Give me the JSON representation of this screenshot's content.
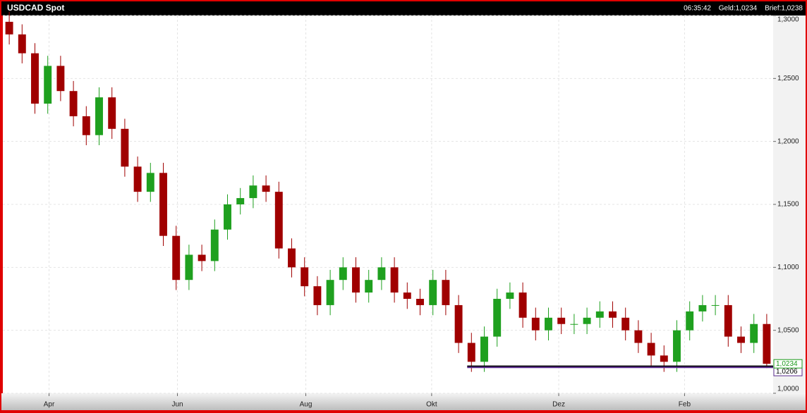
{
  "chart_data": {
    "type": "candlestick",
    "title": "USDCAD Spot",
    "header": {
      "time": "06:35:42",
      "bid": "Geld:1,0234",
      "ask": "Brief:1,0238"
    },
    "categories": [
      null,
      null,
      null,
      null,
      null,
      null,
      null,
      null,
      null,
      null,
      null,
      null,
      null,
      null,
      null,
      null,
      null,
      null,
      null,
      null,
      null,
      null,
      null,
      null,
      null,
      null,
      null,
      null,
      null,
      null,
      null,
      null,
      null,
      null,
      null,
      null,
      null,
      null,
      null,
      null,
      null,
      null,
      null,
      null,
      null,
      null,
      null,
      null,
      null,
      null,
      null,
      null,
      null,
      null,
      null,
      null,
      null,
      null,
      null,
      null
    ],
    "open": [
      1.295,
      1.285,
      1.27,
      1.23,
      1.26,
      1.24,
      1.22,
      1.205,
      1.235,
      1.21,
      1.18,
      1.16,
      1.175,
      1.125,
      1.09,
      1.11,
      1.105,
      1.13,
      1.15,
      1.155,
      1.165,
      1.16,
      1.115,
      1.1,
      1.085,
      1.07,
      1.09,
      1.1,
      1.08,
      1.09,
      1.1,
      1.08,
      1.075,
      1.07,
      1.09,
      1.07,
      1.04,
      1.025,
      1.045,
      1.075,
      1.08,
      1.06,
      1.05,
      1.06,
      1.055,
      1.055,
      1.06,
      1.065,
      1.06,
      1.05,
      1.04,
      1.03,
      1.025,
      1.05,
      1.065,
      1.07,
      1.07,
      1.045,
      1.04,
      1.055
    ],
    "high": [
      1.303,
      1.293,
      1.278,
      1.268,
      1.268,
      1.248,
      1.228,
      1.243,
      1.243,
      1.218,
      1.188,
      1.183,
      1.183,
      1.133,
      1.118,
      1.118,
      1.138,
      1.158,
      1.163,
      1.173,
      1.173,
      1.168,
      1.123,
      1.108,
      1.093,
      1.098,
      1.108,
      1.108,
      1.098,
      1.108,
      1.108,
      1.088,
      1.083,
      1.098,
      1.098,
      1.078,
      1.048,
      1.053,
      1.083,
      1.088,
      1.088,
      1.068,
      1.068,
      1.068,
      1.063,
      1.068,
      1.073,
      1.073,
      1.068,
      1.058,
      1.048,
      1.038,
      1.058,
      1.073,
      1.078,
      1.078,
      1.078,
      1.053,
      1.063,
      1.063
    ],
    "low": [
      1.277,
      1.262,
      1.222,
      1.222,
      1.232,
      1.212,
      1.197,
      1.197,
      1.202,
      1.172,
      1.152,
      1.152,
      1.117,
      1.082,
      1.082,
      1.097,
      1.097,
      1.122,
      1.142,
      1.147,
      1.152,
      1.107,
      1.092,
      1.077,
      1.062,
      1.062,
      1.082,
      1.072,
      1.072,
      1.082,
      1.072,
      1.067,
      1.062,
      1.062,
      1.062,
      1.032,
      1.017,
      1.017,
      1.037,
      1.067,
      1.052,
      1.042,
      1.042,
      1.047,
      1.047,
      1.047,
      1.052,
      1.052,
      1.042,
      1.032,
      1.022,
      1.017,
      1.017,
      1.042,
      1.057,
      1.062,
      1.037,
      1.032,
      1.032,
      1.02
    ],
    "close": [
      1.285,
      1.27,
      1.23,
      1.26,
      1.24,
      1.22,
      1.205,
      1.235,
      1.21,
      1.18,
      1.16,
      1.175,
      1.125,
      1.09,
      1.11,
      1.105,
      1.13,
      1.15,
      1.155,
      1.165,
      1.16,
      1.115,
      1.1,
      1.085,
      1.07,
      1.09,
      1.1,
      1.08,
      1.09,
      1.1,
      1.08,
      1.075,
      1.07,
      1.09,
      1.07,
      1.04,
      1.025,
      1.045,
      1.075,
      1.08,
      1.06,
      1.05,
      1.06,
      1.055,
      1.055,
      1.06,
      1.065,
      1.06,
      1.05,
      1.04,
      1.03,
      1.025,
      1.05,
      1.065,
      1.07,
      1.07,
      1.045,
      1.04,
      1.055,
      1.0234
    ],
    "up_color": "#1fa01f",
    "down_color": "#a00000",
    "xlim": [
      0,
      60
    ],
    "xticks": [
      {
        "value": 3.6,
        "label": "Apr"
      },
      {
        "value": 13.6,
        "label": "Jun"
      },
      {
        "value": 23.6,
        "label": "Aug"
      },
      {
        "value": 33.4,
        "label": "Okt"
      },
      {
        "value": 43.3,
        "label": "Dez"
      },
      {
        "value": 53.1,
        "label": "Feb"
      }
    ],
    "ylim": [
      1.0,
      1.3
    ],
    "yticks": [
      {
        "value": 1.0,
        "label": "1,0000"
      },
      {
        "value": 1.05,
        "label": "1,0500"
      },
      {
        "value": 1.1,
        "label": "1,1000"
      },
      {
        "value": 1.15,
        "label": "1,1500"
      },
      {
        "value": 1.2,
        "label": "1,2000"
      },
      {
        "value": 1.25,
        "label": "1,2500"
      },
      {
        "value": 1.3,
        "label": "1,3000"
      }
    ],
    "grid": true,
    "levels": [
      {
        "value": 1.0215,
        "color": "#000000"
      },
      {
        "value": 1.0206,
        "color": "#5b2c8f",
        "label": "1,0206"
      }
    ],
    "last_price": {
      "value": 1.0234,
      "label": "1,0234",
      "color": "#1a9a1a"
    }
  }
}
